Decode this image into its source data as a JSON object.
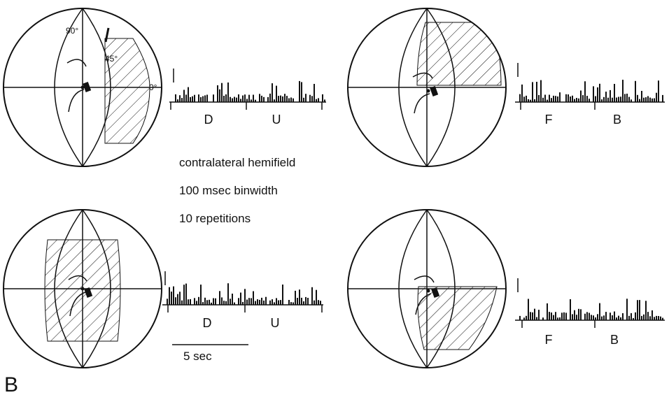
{
  "panel_label": "B",
  "legend": {
    "line1": "contralateral hemifield",
    "line2": "100 msec binwidth",
    "line3": "10 repetitions"
  },
  "scale_bar": {
    "label": "5 sec",
    "seconds": 5
  },
  "globe_labels": {
    "deg90": "90°",
    "deg45": "45°",
    "deg0": "0°"
  },
  "histograms": [
    {
      "id": "top-left",
      "labels": [
        "D",
        "U"
      ]
    },
    {
      "id": "top-right",
      "labels": [
        "F",
        "B"
      ]
    },
    {
      "id": "bottom-left",
      "labels": [
        "D",
        "U"
      ]
    },
    {
      "id": "bottom-right",
      "labels": [
        "F",
        "B"
      ]
    }
  ],
  "colors": {
    "ink": "#111111",
    "background": "#ffffff"
  }
}
